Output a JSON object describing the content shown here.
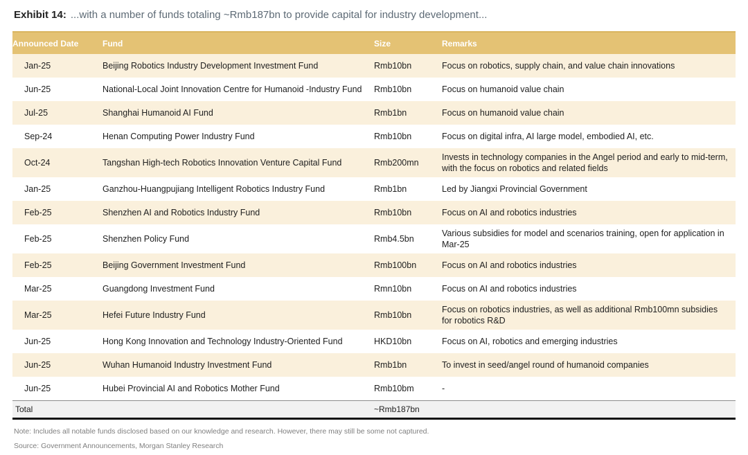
{
  "exhibit": {
    "label": "Exhibit 14:",
    "title": "...with a number of funds totaling ~Rmb187bn to provide capital for industry development..."
  },
  "table": {
    "columns": [
      "Announced Date",
      "Fund",
      "Size",
      "Remarks"
    ],
    "rows": [
      {
        "date": "Jan-25",
        "fund": "Beijing Robotics Industry Development Investment Fund",
        "size": "Rmb10bn",
        "remarks": "Focus on robotics, supply chain, and value chain innovations"
      },
      {
        "date": "Jun-25",
        "fund": "National-Local Joint Innovation Centre for Humanoid -Industry Fund",
        "size": "Rmb10bn",
        "remarks": "Focus on humanoid value chain"
      },
      {
        "date": "Jul-25",
        "fund": "Shanghai Humanoid AI Fund",
        "size": "Rmb1bn",
        "remarks": "Focus on humanoid value chain"
      },
      {
        "date": "Sep-24",
        "fund": "Henan Computing Power Industry Fund",
        "size": "Rmb10bn",
        "remarks": "Focus on digital infra, AI large model, embodied AI, etc."
      },
      {
        "date": "Oct-24",
        "fund": "Tangshan High-tech Robotics Innovation Venture Capital Fund",
        "size": "Rmb200mn",
        "remarks": "Invests in technology companies in the Angel period and early to mid-term, with the focus on robotics and related fields"
      },
      {
        "date": "Jan-25",
        "fund": "Ganzhou-Huangpujiang Intelligent Robotics Industry Fund",
        "size": "Rmb1bn",
        "remarks": "Led by Jiangxi Provincial Government"
      },
      {
        "date": "Feb-25",
        "fund": "Shenzhen AI and Robotics Industry Fund",
        "size": "Rmb10bn",
        "remarks": "Focus on AI and robotics industries"
      },
      {
        "date": "Feb-25",
        "fund": "Shenzhen Policy Fund",
        "size": "Rmb4.5bn",
        "remarks": "Various subsidies for model and scenarios training, open for application in Mar-25"
      },
      {
        "date": "Feb-25",
        "fund": "Beijing Government Investment Fund",
        "size": "Rmb100bn",
        "remarks": "Focus on AI and robotics industries"
      },
      {
        "date": "Mar-25",
        "fund": "Guangdong Investment Fund",
        "size": "Rmn10bn",
        "remarks": "Focus on AI and robotics industries"
      },
      {
        "date": "Mar-25",
        "fund": "Hefei Future Industry Fund",
        "size": "Rmb10bn",
        "remarks": "Focus on robotics industries, as well as additional Rmb100mn subsidies for robotics R&D"
      },
      {
        "date": "Jun-25",
        "fund": "Hong Kong Innovation and Technology Industry-Oriented Fund",
        "size": "HKD10bn",
        "remarks": "Focus on AI, robotics and emerging industries"
      },
      {
        "date": "Jun-25",
        "fund": "Wuhan Humanoid Industry Investment Fund",
        "size": "Rmb1bn",
        "remarks": "To invest in seed/angel round of humanoid companies"
      },
      {
        "date": "Jun-25",
        "fund": "Hubei Provincial AI and Robotics Mother Fund",
        "size": "Rmb10bm",
        "remarks": "-"
      }
    ],
    "total": {
      "label": "Total",
      "size": "~Rmb187bn"
    }
  },
  "footnotes": {
    "note": "Note: Includes all notable funds disclosed based on our knowledge and research. However, there may still be some not captured.",
    "source": "Source: Government Announcements, Morgan Stanley Research"
  },
  "colors": {
    "header_bg": "#e4c274",
    "row_alt_bg": "#faf0dc",
    "total_bg": "#f1f1f1",
    "title_accent": "#5d6a75"
  }
}
